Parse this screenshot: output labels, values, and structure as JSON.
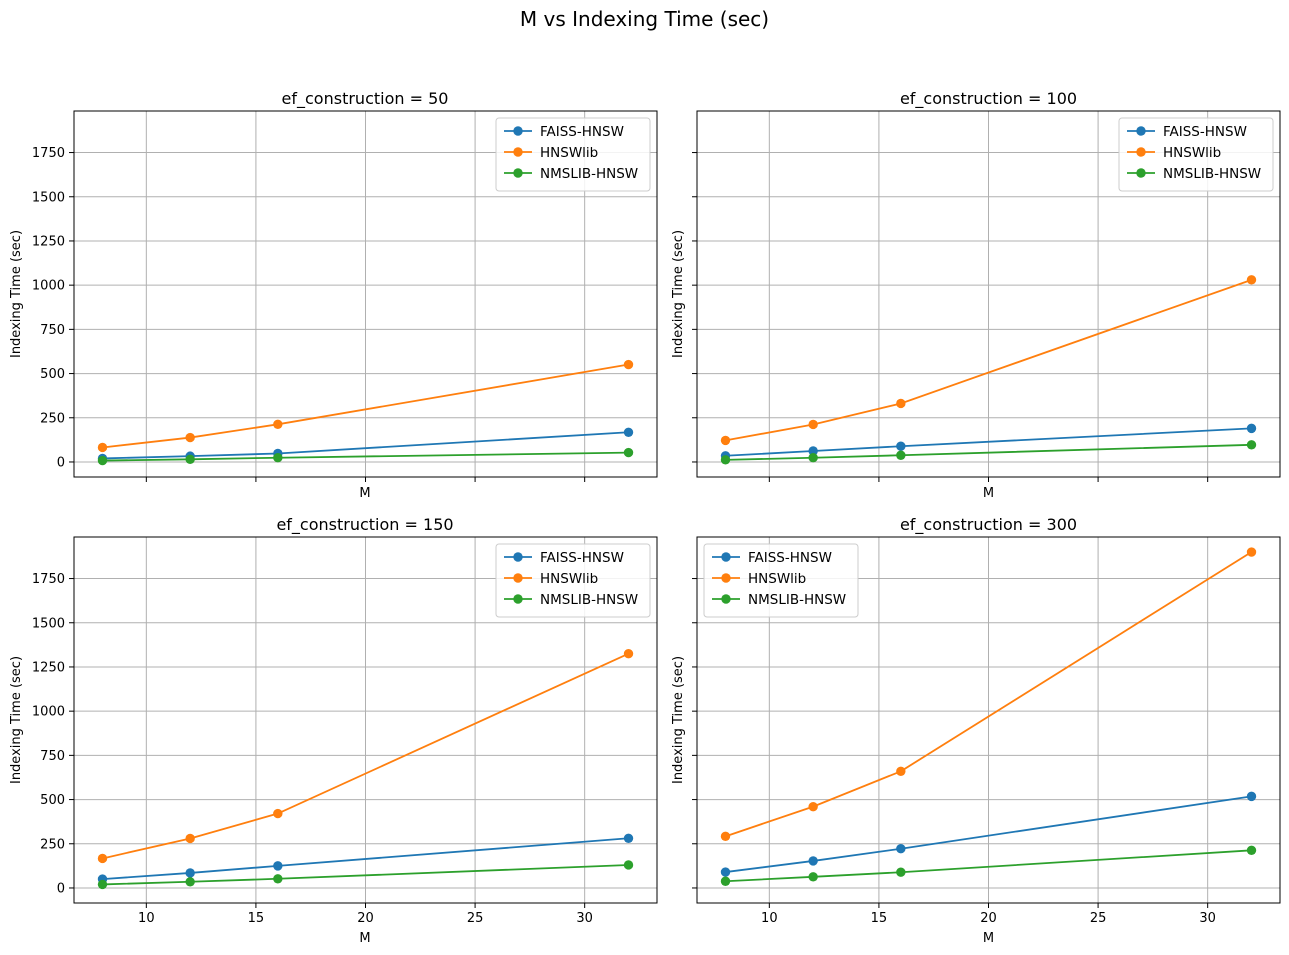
{
  "figure_title": "M vs Indexing Time (sec)",
  "colors": {
    "FAISS-HNSW": "#1f77b4",
    "HNSWlib": "#ff7f0e",
    "NMSLIB-HNSW": "#2ca02c",
    "grid": "#b0b0b0"
  },
  "chart_data": [
    {
      "type": "line",
      "title": "ef_construction = 50",
      "xlabel": "M",
      "ylabel": "Indexing Time (sec)",
      "x": [
        8,
        12,
        16,
        32
      ],
      "xlim": [
        6.7,
        33.3
      ],
      "ylim": [
        -85,
        1985
      ],
      "xticks": [
        10,
        15,
        20,
        25,
        30
      ],
      "yticks": [
        0,
        250,
        500,
        750,
        1000,
        1250,
        1500,
        1750
      ],
      "show_xtick_labels": false,
      "show_ytick_labels": true,
      "grid": true,
      "legend_position": "upper right",
      "series": [
        {
          "name": "FAISS-HNSW",
          "values": [
            20,
            33,
            48,
            168
          ]
        },
        {
          "name": "HNSWlib",
          "values": [
            82,
            138,
            213,
            551
          ]
        },
        {
          "name": "NMSLIB-HNSW",
          "values": [
            8,
            15,
            24,
            53
          ]
        }
      ]
    },
    {
      "type": "line",
      "title": "ef_construction = 100",
      "xlabel": "M",
      "ylabel": "Indexing Time (sec)",
      "x": [
        8,
        12,
        16,
        32
      ],
      "xlim": [
        6.7,
        33.3
      ],
      "ylim": [
        -85,
        1985
      ],
      "xticks": [
        10,
        15,
        20,
        25,
        30
      ],
      "yticks": [
        0,
        250,
        500,
        750,
        1000,
        1250,
        1500,
        1750
      ],
      "show_xtick_labels": false,
      "show_ytick_labels": false,
      "grid": true,
      "legend_position": "upper right",
      "series": [
        {
          "name": "FAISS-HNSW",
          "values": [
            35,
            62,
            89,
            190
          ]
        },
        {
          "name": "HNSWlib",
          "values": [
            122,
            212,
            331,
            1030
          ]
        },
        {
          "name": "NMSLIB-HNSW",
          "values": [
            12,
            24,
            38,
            97
          ]
        }
      ]
    },
    {
      "type": "line",
      "title": "ef_construction = 150",
      "xlabel": "M",
      "ylabel": "Indexing Time (sec)",
      "x": [
        8,
        12,
        16,
        32
      ],
      "xlim": [
        6.7,
        33.3
      ],
      "ylim": [
        -85,
        1985
      ],
      "xticks": [
        10,
        15,
        20,
        25,
        30
      ],
      "yticks": [
        0,
        250,
        500,
        750,
        1000,
        1250,
        1500,
        1750
      ],
      "show_xtick_labels": true,
      "show_ytick_labels": true,
      "grid": true,
      "legend_position": "upper right",
      "series": [
        {
          "name": "FAISS-HNSW",
          "values": [
            50,
            85,
            125,
            281
          ]
        },
        {
          "name": "HNSWlib",
          "values": [
            167,
            280,
            421,
            1325
          ]
        },
        {
          "name": "NMSLIB-HNSW",
          "values": [
            20,
            35,
            52,
            130
          ]
        }
      ]
    },
    {
      "type": "line",
      "title": "ef_construction = 300",
      "xlabel": "M",
      "ylabel": "Indexing Time (sec)",
      "x": [
        8,
        12,
        16,
        32
      ],
      "xlim": [
        6.7,
        33.3
      ],
      "ylim": [
        -85,
        1985
      ],
      "xticks": [
        10,
        15,
        20,
        25,
        30
      ],
      "yticks": [
        0,
        250,
        500,
        750,
        1000,
        1250,
        1500,
        1750
      ],
      "show_xtick_labels": true,
      "show_ytick_labels": false,
      "grid": true,
      "legend_position": "upper left",
      "series": [
        {
          "name": "FAISS-HNSW",
          "values": [
            90,
            153,
            222,
            518
          ]
        },
        {
          "name": "HNSWlib",
          "values": [
            292,
            460,
            660,
            1900
          ]
        },
        {
          "name": "NMSLIB-HNSW",
          "values": [
            38,
            63,
            89,
            213
          ]
        }
      ]
    }
  ]
}
